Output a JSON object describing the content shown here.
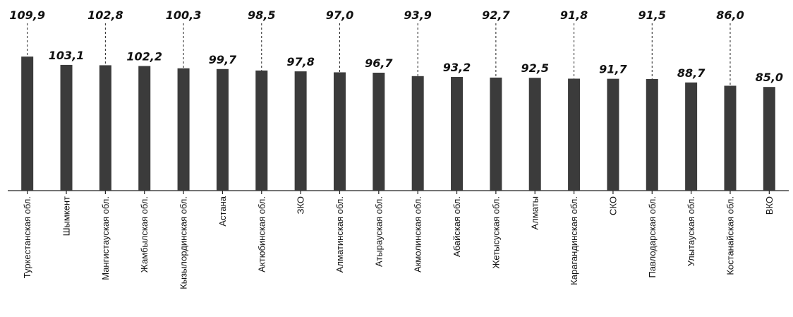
{
  "chart_data": {
    "type": "bar",
    "categories": [
      "Туркестанская обл.",
      "Шымкент",
      "Мангистауская обл.",
      "Жамбылская обл.",
      "Кызылординская обл.",
      "Астана",
      "Актюбинская обл.",
      "ЗКО",
      "Алматинская обл.",
      "Атырауская обл.",
      "Акмолинская обл.",
      "Абайская обл.",
      "Жетысуская обл.",
      "Алматы",
      "Карагандинская обл.",
      "СКО",
      "Павлодарская обл.",
      "Улытауская обл.",
      "Костанайская обл.",
      "ВКО"
    ],
    "values": [
      109.9,
      103.1,
      102.8,
      102.2,
      100.3,
      99.7,
      98.5,
      97.8,
      97.0,
      96.7,
      93.9,
      93.2,
      92.7,
      92.5,
      91.8,
      91.7,
      91.5,
      88.7,
      86.0,
      85.0
    ],
    "value_labels": [
      "109,9",
      "103,1",
      "102,8",
      "102,2",
      "100,3",
      "99,7",
      "98,5",
      "97,8",
      "97,0",
      "96,7",
      "93,9",
      "93,2",
      "92,7",
      "92,5",
      "91,8",
      "91,7",
      "91,5",
      "88,7",
      "86,0",
      "85,0"
    ],
    "label_raised": [
      true,
      false,
      true,
      false,
      true,
      false,
      true,
      false,
      true,
      false,
      true,
      false,
      true,
      false,
      true,
      false,
      true,
      false,
      true,
      false
    ],
    "ylim": [
      0,
      110
    ],
    "grid": false,
    "bar_color": "#3b3b3b"
  }
}
